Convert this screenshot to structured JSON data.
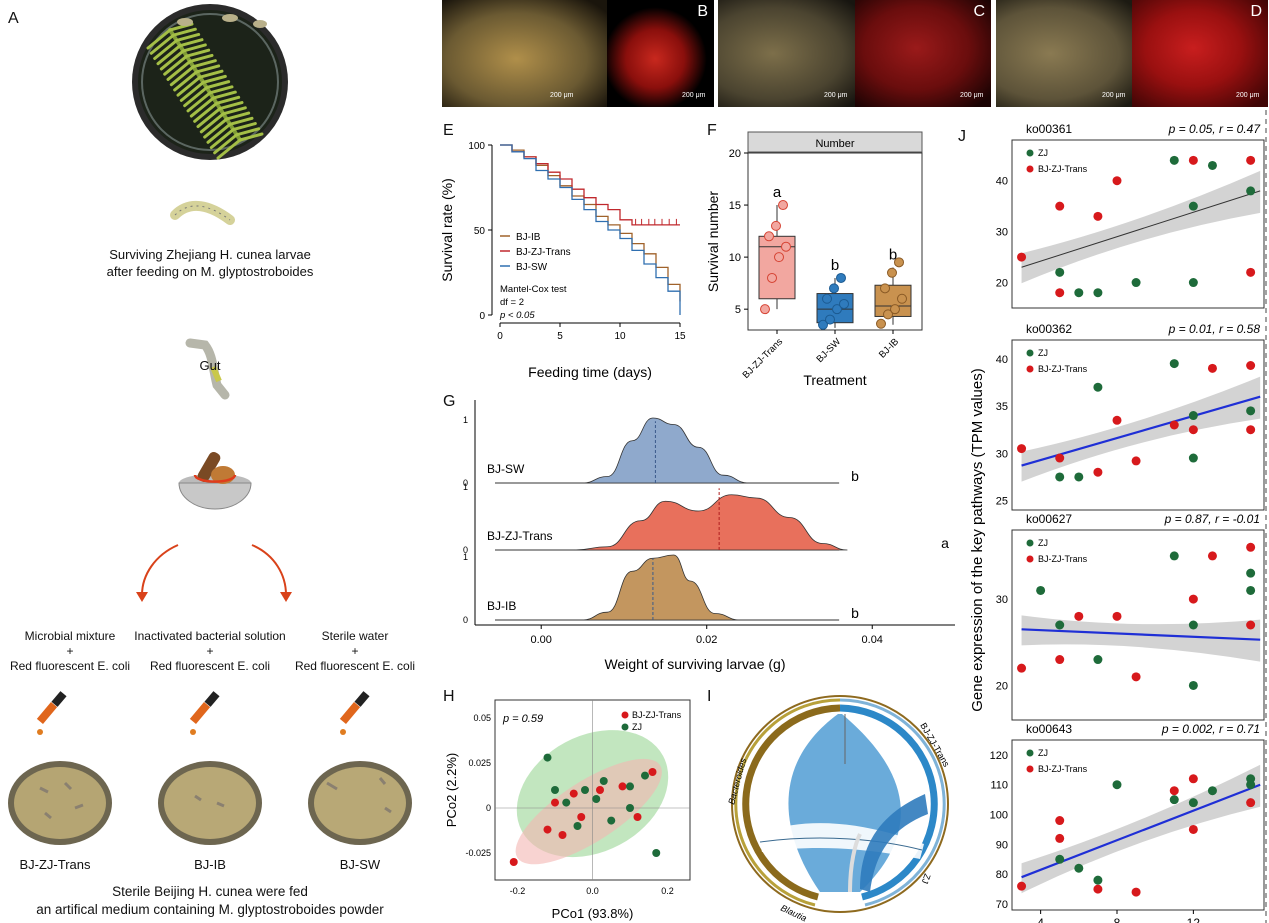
{
  "panel_a": {
    "letter": "A",
    "caption1_line1": "Surviving Zhejiang H. cunea larvae",
    "caption1_line2": "after feeding on M. glyptostroboides",
    "gut_label": "Gut",
    "treatments": [
      {
        "line1": "Microbial mixture",
        "plus": "+",
        "line3": "Red fluorescent E. coli",
        "label": "BJ-ZJ-Trans"
      },
      {
        "line1": "Inactivated bacterial solution",
        "plus": "+",
        "line3": "Red fluorescent E. coli",
        "label": "BJ-IB"
      },
      {
        "line1": "Sterile water",
        "plus": "+",
        "line3": "Red fluorescent E. coli",
        "label": "BJ-SW"
      }
    ],
    "bottom_line1": "Sterile Beijing H. cunea were fed",
    "bottom_line2": "an artifical medium containing M. glyptostroboides powder"
  },
  "micrographs": [
    {
      "letter": "B",
      "scale_left": "200 μm",
      "scale_right": "200 μm"
    },
    {
      "letter": "C",
      "scale_left": "200 μm",
      "scale_right": "200 μm"
    },
    {
      "letter": "D",
      "scale_left": "200 μm",
      "scale_right": "200 μm"
    }
  ],
  "colors": {
    "ib": "#a0622a",
    "trans": "#c0282d",
    "sw": "#2f6fb0",
    "green": "#1e6b3a",
    "red_pt": "#d7191c",
    "blue_line": "#1f2fd6"
  },
  "chart_data": [
    {
      "panel": "E",
      "type": "line",
      "xlabel": "Feeding time (days)",
      "ylabel": "Survival rate (%)",
      "xlim": [
        0,
        15
      ],
      "ylim": [
        0,
        100
      ],
      "xticks": [
        0,
        5,
        10,
        15
      ],
      "yticks": [
        0,
        50,
        100
      ],
      "legend": [
        "BJ-IB",
        "BJ-ZJ-Trans",
        "BJ-SW"
      ],
      "stats": [
        "Mantel-Cox test",
        "df = 2",
        "p < 0.05"
      ],
      "series": [
        {
          "name": "BJ-IB",
          "x": [
            0,
            1,
            2,
            3,
            4,
            5,
            6,
            7,
            8,
            9,
            10,
            11,
            12,
            13,
            14,
            15
          ],
          "values": [
            100,
            97,
            93,
            88,
            82,
            76,
            70,
            65,
            58,
            53,
            48,
            42,
            36,
            28,
            18,
            8
          ]
        },
        {
          "name": "BJ-ZJ-Trans",
          "x": [
            0,
            1,
            2,
            3,
            4,
            5,
            6,
            7,
            8,
            9,
            10,
            11,
            12,
            13,
            14,
            15
          ],
          "values": [
            100,
            96,
            93,
            89,
            84,
            80,
            74,
            69,
            65,
            62,
            56,
            53,
            53,
            53,
            53,
            53
          ]
        },
        {
          "name": "BJ-SW",
          "x": [
            0,
            1,
            2,
            3,
            4,
            5,
            6,
            7,
            8,
            9,
            10,
            11,
            12,
            13,
            14,
            15
          ],
          "values": [
            100,
            96,
            92,
            85,
            80,
            75,
            68,
            62,
            55,
            50,
            45,
            38,
            30,
            22,
            14,
            0
          ]
        }
      ]
    },
    {
      "panel": "F",
      "type": "box",
      "facet_title": "Number",
      "xlabel": "Treatment",
      "ylabel": "Survival number",
      "ylim": [
        3,
        20
      ],
      "yticks": [
        5,
        10,
        15,
        20
      ],
      "categories": [
        "BJ-ZJ-Trans",
        "BJ-SW",
        "BJ-IB"
      ],
      "letters": [
        "a",
        "b",
        "b"
      ],
      "boxes": [
        {
          "q1": 6,
          "median": 11,
          "q3": 12,
          "min": 5,
          "max": 15
        },
        {
          "q1": 3.7,
          "median": 5,
          "q3": 6.5,
          "min": 3.2,
          "max": 8
        },
        {
          "q1": 4.3,
          "median": 5.3,
          "q3": 7.3,
          "min": 3.5,
          "max": 9
        }
      ],
      "points": [
        [
          5,
          8,
          10,
          11,
          12,
          13,
          15
        ],
        [
          3.5,
          4,
          5,
          5.5,
          6,
          7,
          8
        ],
        [
          3.6,
          4.5,
          5,
          6,
          7,
          8.5,
          9.5
        ]
      ]
    },
    {
      "panel": "G",
      "type": "density",
      "xlabel": "Weight of surviving larvae (g)",
      "xticks": [
        0.0,
        0.02,
        0.04
      ],
      "xlim": [
        -0.008,
        0.05
      ],
      "yticks": [
        0,
        1
      ],
      "rows": [
        {
          "name": "BJ-SW",
          "letter": "b",
          "mean": 0.0138
        },
        {
          "name": "BJ-ZJ-Trans",
          "letter": "a",
          "mean": 0.0215
        },
        {
          "name": "BJ-IB",
          "letter": "b",
          "mean": 0.0135
        }
      ]
    },
    {
      "panel": "H",
      "type": "scatter",
      "xlabel": "PCo1 (93.8%)",
      "ylabel": "PCo2 (2.2%)",
      "annotation": "p = 0.59",
      "xticks": [
        -0.2,
        0.0,
        0.2
      ],
      "yticks": [
        0.05,
        0.025,
        0.0,
        -0.025
      ],
      "legend": [
        "BJ-ZJ-Trans",
        "ZJ"
      ],
      "series": [
        {
          "name": "BJ-ZJ-Trans",
          "points": [
            [
              -0.21,
              -0.03
            ],
            [
              -0.12,
              -0.012
            ],
            [
              -0.08,
              -0.015
            ],
            [
              -0.1,
              0.003
            ],
            [
              -0.05,
              0.008
            ],
            [
              -0.03,
              -0.005
            ],
            [
              0.02,
              0.01
            ],
            [
              0.08,
              0.012
            ],
            [
              0.12,
              -0.005
            ],
            [
              0.16,
              0.02
            ]
          ]
        },
        {
          "name": "ZJ",
          "points": [
            [
              -0.12,
              0.028
            ],
            [
              -0.1,
              0.01
            ],
            [
              -0.07,
              0.003
            ],
            [
              -0.02,
              0.01
            ],
            [
              0.01,
              0.005
            ],
            [
              0.03,
              0.015
            ],
            [
              0.05,
              -0.007
            ],
            [
              0.1,
              0.012
            ],
            [
              0.14,
              0.018
            ],
            [
              0.17,
              -0.025
            ],
            [
              0.1,
              0.0
            ],
            [
              -0.04,
              -0.01
            ]
          ]
        }
      ]
    },
    {
      "panel": "J",
      "type": "scatter",
      "ylabel": "Gene expression of the key pathways (TPM values)",
      "xlabel": "Survival number",
      "xticks": [
        4,
        8,
        12
      ],
      "legend": [
        "ZJ",
        "BJ-ZJ-Trans"
      ],
      "subplots": [
        {
          "title": "ko00361",
          "stat": "p = 0.05, r = 0.47",
          "yticks": [
            20,
            30,
            40
          ],
          "ylim": [
            15,
            48
          ],
          "fit": [
            23,
            38
          ],
          "zj": [
            [
              5,
              22
            ],
            [
              6,
              18
            ],
            [
              7,
              18
            ],
            [
              9,
              20
            ],
            [
              11,
              44
            ],
            [
              12,
              35
            ],
            [
              12,
              20
            ],
            [
              13,
              43
            ],
            [
              15,
              38
            ]
          ],
          "trans": [
            [
              3,
              25
            ],
            [
              5,
              35
            ],
            [
              5,
              18
            ],
            [
              7,
              33
            ],
            [
              8,
              40
            ],
            [
              12,
              44
            ],
            [
              15,
              44
            ],
            [
              15,
              22
            ]
          ]
        },
        {
          "title": "ko00362",
          "stat": "p = 0.01, r = 0.58",
          "yticks": [
            25,
            30,
            35,
            40
          ],
          "ylim": [
            24,
            42
          ],
          "fit": [
            28.7,
            36
          ],
          "zj": [
            [
              5,
              27.5
            ],
            [
              6,
              27.5
            ],
            [
              7,
              37
            ],
            [
              11,
              39.5
            ],
            [
              12,
              34
            ],
            [
              12,
              29.5
            ],
            [
              15,
              34.5
            ]
          ],
          "trans": [
            [
              3,
              30.5
            ],
            [
              5,
              29.5
            ],
            [
              7,
              28
            ],
            [
              8,
              33.5
            ],
            [
              9,
              29.2
            ],
            [
              11,
              33
            ],
            [
              12,
              32.5
            ],
            [
              13,
              39
            ],
            [
              15,
              39.3
            ],
            [
              15,
              32.5
            ]
          ]
        },
        {
          "title": "ko00627",
          "stat": "p = 0.87, r = -0.01",
          "yticks": [
            20,
            30
          ],
          "ylim": [
            16,
            38
          ],
          "fit": [
            26.5,
            25.3
          ],
          "zj": [
            [
              4,
              31
            ],
            [
              5,
              27
            ],
            [
              7,
              23
            ],
            [
              11,
              35
            ],
            [
              12,
              27
            ],
            [
              12,
              20
            ],
            [
              15,
              31
            ],
            [
              15,
              33
            ]
          ],
          "trans": [
            [
              3,
              22
            ],
            [
              5,
              23
            ],
            [
              6,
              28
            ],
            [
              8,
              28
            ],
            [
              9,
              21
            ],
            [
              12,
              30
            ],
            [
              13,
              35
            ],
            [
              15,
              36
            ],
            [
              15,
              27
            ]
          ]
        },
        {
          "title": "ko00643",
          "stat": "p = 0.002, r = 0.71",
          "yticks": [
            70,
            80,
            90,
            100,
            110,
            120
          ],
          "ylim": [
            68,
            125
          ],
          "fit": [
            79,
            110
          ],
          "zj": [
            [
              5,
              85
            ],
            [
              6,
              82
            ],
            [
              7,
              78
            ],
            [
              8,
              110
            ],
            [
              11,
              105
            ],
            [
              12,
              104
            ],
            [
              13,
              108
            ],
            [
              15,
              110
            ],
            [
              15,
              112
            ]
          ],
          "trans": [
            [
              3,
              76
            ],
            [
              5,
              98
            ],
            [
              5,
              92
            ],
            [
              7,
              75
            ],
            [
              9,
              74
            ],
            [
              11,
              108
            ],
            [
              12,
              112
            ],
            [
              12,
              95
            ],
            [
              15,
              104
            ]
          ]
        }
      ]
    }
  ],
  "panel_letters": {
    "e": "E",
    "f": "F",
    "g": "G",
    "h": "H",
    "i": "I",
    "j": "J"
  },
  "chord": {
    "labels": [
      "BJ-ZJ-Trans",
      "ZJ",
      "Bacteroides",
      "Blautia"
    ]
  }
}
